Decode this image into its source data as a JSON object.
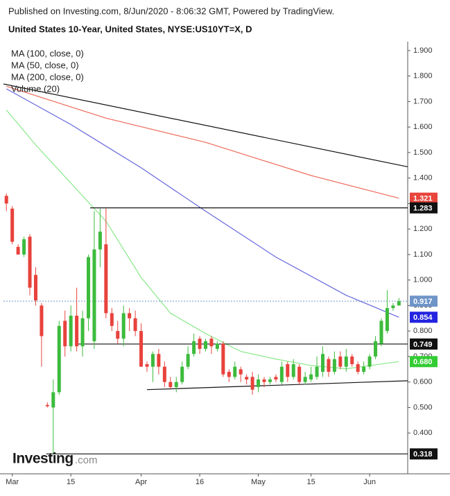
{
  "header": {
    "published": "Published on Investing.com, 8/Jun/2020 - 8:06:32 GMT, Powered by TradingView.",
    "instrument": "United States 10-Year, United States, NYSE:US10YT=X, D"
  },
  "logo": {
    "brand": "Investing",
    "suffix": ".com"
  },
  "chart_data": {
    "type": "candlestick",
    "xlim": [
      -0.5,
      68.5
    ],
    "ylim": [
      0.24,
      1.935
    ],
    "xticks": [
      {
        "value": 1,
        "label": "Mar"
      },
      {
        "value": 11,
        "label": "15"
      },
      {
        "value": 23,
        "label": "Apr"
      },
      {
        "value": 33,
        "label": "16"
      },
      {
        "value": 43,
        "label": "May"
      },
      {
        "value": 52,
        "label": "15"
      },
      {
        "value": 62,
        "label": "Jun"
      }
    ],
    "yticks": [
      {
        "value": 0.4,
        "label": "0.400"
      },
      {
        "value": 0.5,
        "label": "0.500"
      },
      {
        "value": 0.6,
        "label": "0.600"
      },
      {
        "value": 0.7,
        "label": "0.700"
      },
      {
        "value": 0.8,
        "label": "0.800"
      },
      {
        "value": 0.9,
        "label": "0.900"
      },
      {
        "value": 1.0,
        "label": "1.000"
      },
      {
        "value": 1.1,
        "label": "1.100"
      },
      {
        "value": 1.2,
        "label": "1.200"
      },
      {
        "value": 1.3,
        "label": "1.300"
      },
      {
        "value": 1.4,
        "label": "1.400"
      },
      {
        "value": 1.5,
        "label": "1.500"
      },
      {
        "value": 1.6,
        "label": "1.600"
      },
      {
        "value": 1.7,
        "label": "1.700"
      },
      {
        "value": 1.8,
        "label": "1.800"
      },
      {
        "value": 1.9,
        "label": "1.900"
      }
    ],
    "up_color": "#3dbb3d",
    "down_color": "#e8423c",
    "candles": {
      "x": [
        0,
        1,
        2,
        3,
        4,
        5,
        6,
        7,
        8,
        9,
        10,
        11,
        12,
        13,
        14,
        15,
        16,
        17,
        18,
        19,
        20,
        21,
        22,
        23,
        24,
        25,
        26,
        27,
        28,
        29,
        30,
        31,
        32,
        33,
        34,
        35,
        36,
        37,
        38,
        39,
        40,
        41,
        42,
        43,
        44,
        45,
        46,
        47,
        48,
        49,
        50,
        51,
        52,
        53,
        54,
        55,
        56,
        57,
        58,
        59,
        60,
        61,
        62,
        63,
        64,
        65,
        66,
        67
      ],
      "open": [
        1.33,
        1.28,
        1.13,
        1.1,
        1.17,
        1.02,
        0.9,
        0.51,
        0.5,
        0.56,
        0.84,
        0.74,
        0.86,
        0.74,
        0.85,
        0.76,
        1.12,
        1.14,
        0.87,
        0.8,
        0.77,
        0.87,
        0.85,
        0.8,
        0.67,
        0.66,
        0.71,
        0.66,
        0.6,
        0.58,
        0.6,
        0.66,
        0.71,
        0.77,
        0.73,
        0.77,
        0.73,
        0.75,
        0.64,
        0.62,
        0.65,
        0.62,
        0.62,
        0.58,
        0.61,
        0.6,
        0.62,
        0.6,
        0.67,
        0.62,
        0.66,
        0.6,
        0.61,
        0.62,
        0.64,
        0.69,
        0.64,
        0.7,
        0.66,
        0.7,
        0.67,
        0.64,
        0.66,
        0.7,
        0.75,
        0.8,
        0.89,
        0.9
      ],
      "high": [
        1.34,
        1.29,
        1.14,
        1.17,
        1.18,
        1.05,
        0.91,
        0.52,
        0.61,
        0.84,
        0.88,
        0.9,
        0.97,
        0.88,
        1.1,
        1.27,
        1.28,
        1.28,
        0.89,
        0.84,
        0.9,
        0.89,
        0.88,
        0.83,
        0.68,
        0.72,
        0.73,
        0.68,
        0.62,
        0.62,
        0.68,
        0.74,
        0.79,
        0.78,
        0.77,
        0.78,
        0.76,
        0.76,
        0.65,
        0.68,
        0.66,
        0.63,
        0.64,
        0.63,
        0.62,
        0.62,
        0.63,
        0.68,
        0.68,
        0.69,
        0.67,
        0.64,
        0.66,
        0.7,
        0.74,
        0.7,
        0.72,
        0.72,
        0.73,
        0.71,
        0.68,
        0.68,
        0.71,
        0.78,
        0.85,
        0.96,
        0.91,
        0.93
      ],
      "low": [
        1.27,
        1.14,
        1.1,
        1.09,
        0.94,
        0.9,
        0.66,
        0.5,
        0.318,
        0.55,
        0.7,
        0.72,
        0.72,
        0.7,
        0.8,
        0.73,
        1.05,
        0.85,
        0.8,
        0.75,
        0.74,
        0.8,
        0.78,
        0.66,
        0.64,
        0.6,
        0.63,
        0.58,
        0.57,
        0.56,
        0.59,
        0.65,
        0.7,
        0.71,
        0.72,
        0.71,
        0.72,
        0.62,
        0.6,
        0.61,
        0.6,
        0.59,
        0.55,
        0.56,
        0.58,
        0.59,
        0.6,
        0.59,
        0.6,
        0.61,
        0.59,
        0.59,
        0.6,
        0.61,
        0.62,
        0.62,
        0.63,
        0.65,
        0.64,
        0.66,
        0.63,
        0.63,
        0.65,
        0.69,
        0.74,
        0.79,
        0.88,
        0.9
      ],
      "close": [
        1.3,
        1.15,
        1.1,
        1.16,
        0.97,
        0.92,
        0.78,
        0.505,
        0.56,
        0.82,
        0.74,
        0.86,
        0.74,
        0.85,
        1.09,
        1.12,
        1.19,
        0.87,
        0.82,
        0.77,
        0.87,
        0.85,
        0.8,
        0.66,
        0.66,
        0.71,
        0.66,
        0.6,
        0.58,
        0.6,
        0.66,
        0.71,
        0.76,
        0.73,
        0.76,
        0.74,
        0.75,
        0.63,
        0.62,
        0.66,
        0.63,
        0.61,
        0.57,
        0.61,
        0.6,
        0.61,
        0.61,
        0.66,
        0.62,
        0.67,
        0.6,
        0.62,
        0.63,
        0.66,
        0.71,
        0.64,
        0.69,
        0.66,
        0.7,
        0.67,
        0.64,
        0.66,
        0.7,
        0.76,
        0.84,
        0.89,
        0.9,
        0.917
      ]
    },
    "series": [
      {
        "name": "MA (100, close, 0)",
        "color": "#6666dd",
        "x": [
          0,
          11,
          23,
          34,
          46,
          58,
          67
        ],
        "values": [
          1.75,
          1.61,
          1.44,
          1.27,
          1.09,
          0.94,
          0.854
        ]
      },
      {
        "name": "MA (50, close, 0)",
        "color": "#88e888",
        "x": [
          0,
          5,
          11,
          17,
          23,
          28,
          34,
          40,
          46,
          52,
          58,
          67
        ],
        "values": [
          1.667,
          1.53,
          1.38,
          1.23,
          1.01,
          0.87,
          0.79,
          0.72,
          0.69,
          0.665,
          0.652,
          0.68
        ]
      },
      {
        "name": "MA (200, close, 0)",
        "color": "#ee6a5a",
        "x": [
          0,
          17,
          34,
          52,
          67
        ],
        "values": [
          1.76,
          1.635,
          1.54,
          1.41,
          1.321
        ]
      }
    ],
    "legend_extra": "Volume (20)",
    "trendlines": [
      {
        "x": [
          -0.5,
          68.5
        ],
        "values": [
          1.769,
          1.444
        ]
      },
      {
        "x": [
          24,
          68.5
        ],
        "values": [
          0.57,
          0.605
        ]
      }
    ],
    "levels": [
      {
        "value": 1.283,
        "label": "1.283",
        "x_start": 14.3
      },
      {
        "value": 0.749,
        "label": "0.749",
        "x_start": 12.3
      },
      {
        "value": 0.318,
        "label": "0.318",
        "x_start": 6.8
      }
    ],
    "price_labels": [
      {
        "value": 1.321,
        "label": "1.321",
        "color": "#e8453c"
      },
      {
        "value": 0.917,
        "label": "0.917",
        "color": "#6f95c8"
      },
      {
        "value": 0.854,
        "label": "0.854",
        "color": "#2323e0"
      },
      {
        "value": 0.68,
        "label": "0.680",
        "color": "#33cc33"
      }
    ],
    "current_price": {
      "value": 0.917,
      "color": "#6f95c8"
    }
  }
}
